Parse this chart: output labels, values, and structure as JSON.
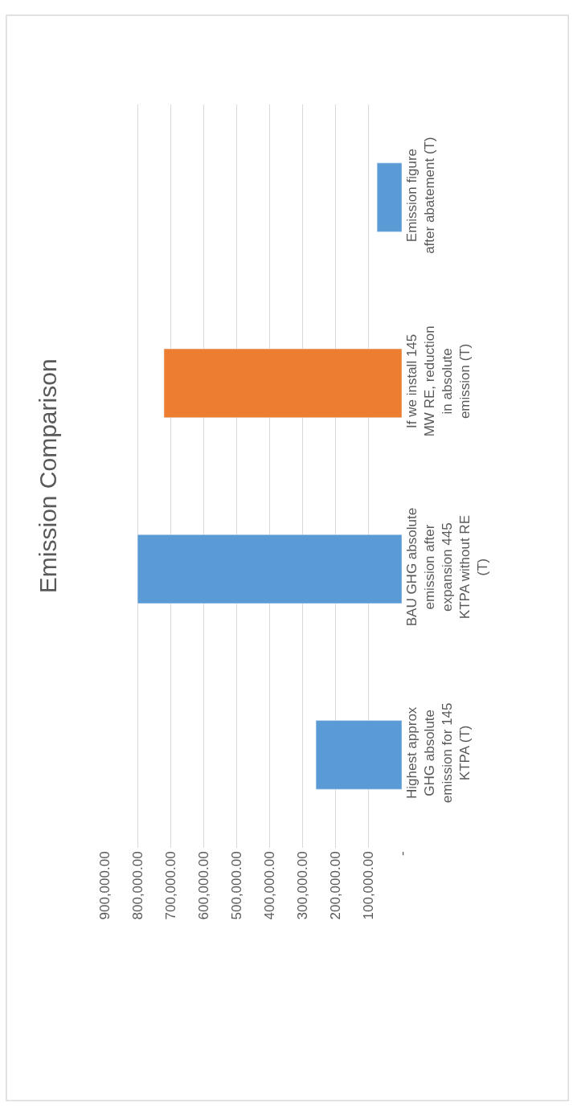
{
  "chart_data": {
    "type": "bar",
    "orientation": "horizontal",
    "title": "Emission Comparison",
    "categories": [
      "Emission figure\nafter abatement (T)",
      "If we install 145\nMW RE, reduction\nin absolute\nemission (T)",
      "BAU GHG absolute\nemission after\nexpansion 445\nKTPA without RE\n(T)",
      "Highest approx\nGHG absolute\nemission for 145\nKTPA (T)"
    ],
    "values": [
      75000,
      720000,
      800000,
      260000
    ],
    "colors": [
      "#5b9bd5",
      "#ed7d31",
      "#5b9bd5",
      "#5b9bd5"
    ],
    "xlim": [
      900000,
      0
    ],
    "xticks": [
      {
        "value": 0,
        "label": "-"
      },
      {
        "value": 100000,
        "label": "100,000.00"
      },
      {
        "value": 200000,
        "label": "200,000.00"
      },
      {
        "value": 300000,
        "label": "300,000.00"
      },
      {
        "value": 400000,
        "label": "400,000.00"
      },
      {
        "value": 500000,
        "label": "500,000.00"
      },
      {
        "value": 600000,
        "label": "600,000.00"
      },
      {
        "value": 700000,
        "label": "700,000.00"
      },
      {
        "value": 800000,
        "label": "800,000.00"
      },
      {
        "value": 900000,
        "label": "900,000.00"
      }
    ],
    "grid": "x"
  }
}
